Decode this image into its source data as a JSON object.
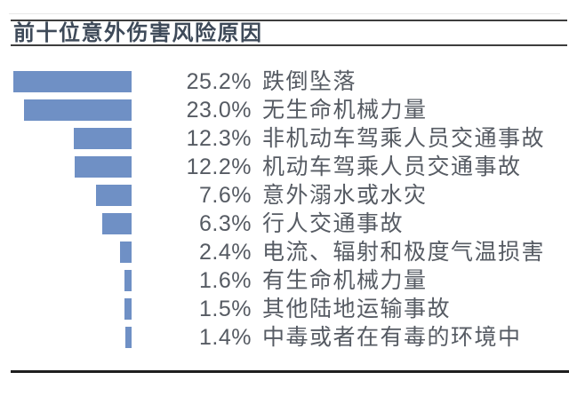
{
  "header": {
    "title": "前十位意外伤害风险原因"
  },
  "colors": {
    "background": "#ffffff",
    "bar": "#6f90c5",
    "title_text": "#3e4a59",
    "body_text": "#565b63",
    "top_rules": "#3d3d3d",
    "bottom_rule": "#1e1e1e",
    "hairline": "#e8e8e8"
  },
  "chart_data": {
    "type": "bar",
    "orientation": "horizontal",
    "bar_alignment": "right-edge-aligned, growing leftward",
    "title": "前十位意外伤害风险原因",
    "categories": [
      "跌倒坠落",
      "无生命机械力量",
      "非机动车驾乘人员交通事故",
      "机动车驾乘人员交通事故",
      "意外溺水或水灾",
      "行人交通事故",
      "电流、辐射和极度气温损害",
      "有生命机械力量",
      "其他陆地运输事故",
      "中毒或者在有毒的环境中"
    ],
    "values": [
      25.2,
      23.0,
      12.3,
      12.2,
      7.6,
      6.3,
      2.4,
      1.6,
      1.5,
      1.4
    ],
    "value_labels": [
      "25.2%",
      "23.0%",
      "12.3%",
      "12.2%",
      "7.6%",
      "6.3%",
      "2.4%",
      "1.6%",
      "1.5%",
      "1.4%"
    ],
    "unit": "%",
    "xlim": [
      0,
      25.2
    ],
    "grid": false,
    "legend": false,
    "axis_labels_shown": false
  }
}
